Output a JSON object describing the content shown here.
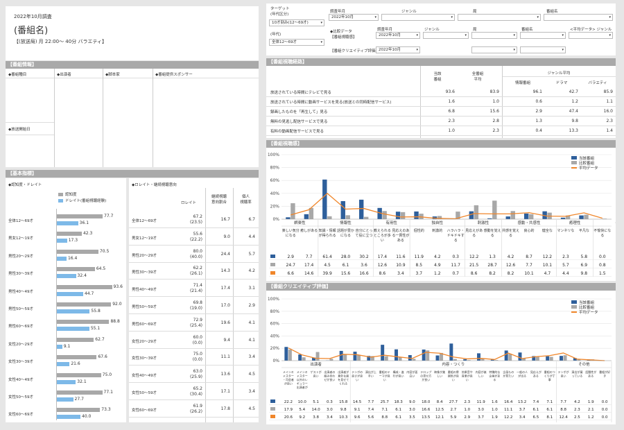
{
  "program": {
    "survey_month": "2022年10月調査",
    "name": "(番組名)",
    "broadcast": "【(放送局) 月 22:00～ 40分 バラエティ】"
  },
  "filters": {
    "target_label_1": "ターゲット",
    "target_label_2": "(年代区分)",
    "target_value": "10才刻み(12～69才)",
    "age_label": "(年代)",
    "age_value": "全体12～69才",
    "survey_month_label": "調査年月",
    "survey_month_value": "2022年10月",
    "genre_label": "ジャンル",
    "station_label": "局",
    "program_label": "番組名",
    "compare_label_1": "◆比較データ",
    "compare_label_2": "【番組視聴感】",
    "compare_month_label": "調査年月",
    "compare_month_value": "2022年10月",
    "avg_label": "<平均データ> ジャンル",
    "creative_label": "【番組クリエイティブ評価】",
    "creative_value": "2022年10月"
  },
  "info": {
    "header": "【番組情報】",
    "cols": [
      "◆番組種目",
      "◆出演者",
      "◆脚本家",
      "◆番組提供スポンサー"
    ],
    "start_label": "◆放送開始日"
  },
  "basic": {
    "header": "【基本指標】",
    "left_title": "◆認知度・ドレイト",
    "legend": [
      "認知度",
      "ドレイト(番組視聴経験)"
    ],
    "right_title": "◆ロレイト・継続視聴意向",
    "right_cols": [
      "ロレイト",
      "継続視聴\n意向割合",
      "個人\n視聴率"
    ],
    "rows": [
      {
        "label": "全体12～69才",
        "a": 77.7,
        "b": 36.1,
        "a_t": "77.7",
        "b_t": "36.1",
        "r1": "67.2",
        "r1p": "(23.5)",
        "r2": "16.7",
        "r3": "6.7"
      },
      {
        "label": "男女12～19才",
        "a": 42.3,
        "b": 17.3,
        "a_t": "42.3",
        "b_t": "17.3",
        "r1": "55.6",
        "r1p": "(22.2)",
        "r2": "9.0",
        "r3": "4.4"
      },
      {
        "label": "男性20～29才",
        "a": 70.5,
        "b": 16.4,
        "a_t": "70.5",
        "b_t": "16.4",
        "r1": "80.0",
        "r1p": "(40.0)",
        "r2": "24.4",
        "r3": "5.7"
      },
      {
        "label": "男性30～39才",
        "a": 64.5,
        "b": 32.4,
        "a_t": "64.5",
        "b_t": "32.4",
        "r1": "62.2",
        "r1p": "(26.1)",
        "r2": "14.3",
        "r3": "4.2"
      },
      {
        "label": "男性40～49才",
        "a": 93.6,
        "b": 44.7,
        "a_t": "93.6",
        "b_t": "44.7",
        "r1": "71.4",
        "r1p": "(21.4)",
        "r2": "17.4",
        "r3": "3.1"
      },
      {
        "label": "男性50～59才",
        "a": 92.0,
        "b": 55.8,
        "a_t": "92.0",
        "b_t": "55.8",
        "r1": "69.8",
        "r1p": "(19.0)",
        "r2": "17.0",
        "r3": "2.9"
      },
      {
        "label": "男性60～69才",
        "a": 88.8,
        "b": 55.1,
        "a_t": "88.8",
        "b_t": "55.1",
        "r1": "72.9",
        "r1p": "(25.4)",
        "r2": "19.6",
        "r3": "4.1"
      },
      {
        "label": "女性20～29才",
        "a": 62.7,
        "b": 9.1,
        "a_t": "62.7",
        "b_t": "9.1",
        "r1": "60.0",
        "r1p": "(0.0)",
        "r2": "9.4",
        "r3": "4.1"
      },
      {
        "label": "女性30～39才",
        "a": 67.6,
        "b": 21.6,
        "a_t": "67.6",
        "b_t": "21.6",
        "r1": "75.0",
        "r1p": "(0.0)",
        "r2": "11.1",
        "r3": "3.4"
      },
      {
        "label": "女性40～49才",
        "a": 75.0,
        "b": 32.1,
        "a_t": "75.0",
        "b_t": "32.1",
        "r1": "63.0",
        "r1p": "(25.9)",
        "r2": "13.6",
        "r3": "4.5"
      },
      {
        "label": "女性50～59才",
        "a": 77.1,
        "b": 27.7,
        "a_t": "77.1",
        "b_t": "27.7",
        "r1": "65.2",
        "r1p": "(30.4)",
        "r2": "17.1",
        "r3": "3.4"
      },
      {
        "label": "女性60～69才",
        "a": 73.3,
        "b": 40.0,
        "a_t": "73.3",
        "b_t": "40.0",
        "r1": "61.9",
        "r1p": "(26.2)",
        "r2": "17.8",
        "r3": "4.5"
      }
    ]
  },
  "route": {
    "header": "【番組視聴経路】",
    "cols": [
      "当該\n番組",
      "全番組\n平均"
    ],
    "genre_avg": "ジャンル平均",
    "subcols": [
      "情報番組",
      "ドラマ",
      "バラエティ"
    ],
    "rows": [
      {
        "label": "放送されている時間にテレビで見る",
        "v": [
          "93.6",
          "83.9",
          "96.1",
          "42.7",
          "85.9"
        ]
      },
      {
        "label": "放送されている時間に動画サービスを見る(放送との同時配信サービス)",
        "v": [
          "1.6",
          "1.0",
          "0.6",
          "1.2",
          "1.1"
        ]
      },
      {
        "label": "録画したものを「再生して」見る",
        "v": [
          "6.8",
          "15.6",
          "2.9",
          "47.4",
          "16.0"
        ]
      },
      {
        "label": "無料の見逃し配信サービスで見る",
        "v": [
          "2.3",
          "2.8",
          "1.3",
          "9.8",
          "2.3"
        ]
      },
      {
        "label": "有料の動画配信サービスで見る",
        "v": [
          "1.0",
          "2.3",
          "0.4",
          "13.3",
          "1.4"
        ]
      }
    ]
  },
  "feel": {
    "header": "【番組視聴感】",
    "legend": [
      "当該番組",
      "比較番組",
      "平均データ"
    ],
    "ticks": [
      "100%",
      "80%",
      "60%",
      "40%",
      "20%",
      "0%"
    ],
    "groups": [
      {
        "label": "娯楽性",
        "n": 2
      },
      {
        "label": "情報性",
        "n": 3
      },
      {
        "label": "有用性",
        "n": 2
      },
      {
        "label": "独自性",
        "n": 3
      },
      {
        "label": "刺激性",
        "n": 2
      },
      {
        "label": "感動・共感性",
        "n": 3
      },
      {
        "label": "癒理性",
        "n": 2
      },
      {
        "label": "その他",
        "n": 3
      }
    ],
    "categories": [
      "楽しい気分になる",
      "癒しがある",
      "知識・情報が得られる",
      "話題が豊かになる",
      "自分にとって役に立つ",
      "教えられるところが多い",
      "見応えのある一貫性がある",
      "個性的",
      "刺激的",
      "ハラハラ・ドキドキする",
      "見応えがある",
      "感動を覚える",
      "共感を覚える",
      "良心的",
      "健全な",
      "マンネリな",
      "平凡な",
      "不愉快になる"
    ],
    "series": [
      {
        "name": "当該番組",
        "values": [
          2.9,
          7.7,
          61.4,
          28.0,
          30.2,
          17.4,
          11.6,
          11.9,
          4.2,
          0.3,
          12.2,
          1.3,
          4.2,
          8.7,
          12.2,
          2.3,
          5.8,
          0.0
        ]
      },
      {
        "name": "比較番組",
        "values": [
          24.7,
          17.4,
          4.5,
          6.1,
          3.6,
          12.6,
          10.9,
          8.5,
          4.9,
          11.7,
          21.5,
          28.7,
          12.6,
          7.7,
          10.1,
          5.7,
          6.9,
          0.8
        ]
      },
      {
        "name": "平均データ",
        "values": [
          6.6,
          14.6,
          39.9,
          15.6,
          16.6,
          8.6,
          3.4,
          3.7,
          1.2,
          0.7,
          8.6,
          8.2,
          8.2,
          10.1,
          4.7,
          4.4,
          9.8,
          1.5
        ]
      }
    ]
  },
  "creative": {
    "header": "【番組クリエイティブ評価】",
    "legend": [
      "当該番組",
      "比較番組",
      "平均データ"
    ],
    "ticks": [
      "100%",
      "80%",
      "60%",
      "40%",
      "20%",
      "0%"
    ],
    "groups": [
      {
        "label": "出演者",
        "n": 5
      },
      {
        "label": "内容・つくり",
        "n": 15
      },
      {
        "label": "その他",
        "n": 4
      }
    ],
    "categories": [
      "メインキャスター・司会者が良い",
      "メインキャスター以外のレギュラー出演者が良い",
      "ゲストが良い",
      "出演者の組み合わせが良い",
      "出演者が意外な面を見せてくれる",
      "テンポの良さが良い",
      "演出が上手い",
      "番組のテーマが良い",
      "構成・進行が良い",
      "内容が面白い",
      "テロップの見せ方が良い",
      "映像が美しい",
      "番組の雰囲気が良い",
      "効果音や音楽が良い",
      "内容が楽しい",
      "特徴的な企画がある",
      "企画ものが見たい",
      "一般の人が出る",
      "見応えがある",
      "番組のつくりが丁寧",
      "テンポが良い",
      "演出が凝っている",
      "話題性がある",
      "番組が好き"
    ],
    "series": [
      {
        "name": "当該番組",
        "values": [
          22.2,
          10.0,
          5.1,
          0.3,
          15.8,
          14.5,
          7.7,
          25.7,
          18.3,
          9.0,
          18.0,
          8.4,
          27.7,
          2.3,
          11.9,
          1.6,
          16.4,
          13.2,
          7.4,
          7.1,
          7.7,
          4.2,
          1.9,
          0.0
        ]
      },
      {
        "name": "比較番組",
        "values": [
          17.9,
          5.4,
          14.0,
          3.0,
          9.8,
          9.1,
          7.4,
          7.1,
          6.1,
          3.0,
          16.6,
          12.5,
          2.7,
          1.0,
          3.0,
          1.0,
          11.1,
          3.7,
          6.1,
          6.1,
          8.8,
          2.3,
          2.1,
          0.0
        ]
      },
      {
        "name": "平均データ",
        "values": [
          20.6,
          9.2,
          3.8,
          3.4,
          10.3,
          9.6,
          5.6,
          8.8,
          6.1,
          3.5,
          13.5,
          12.1,
          5.9,
          2.9,
          3.7,
          1.9,
          12.2,
          3.4,
          6.5,
          8.1,
          12.4,
          2.5,
          1.2,
          0.0
        ]
      }
    ]
  },
  "colors": {
    "navy": "#2e5f9b",
    "gray": "#a8a8a8",
    "orange": "#f0862a",
    "light_blue": "#7db9e8",
    "header_gray": "#a9a9a9"
  }
}
